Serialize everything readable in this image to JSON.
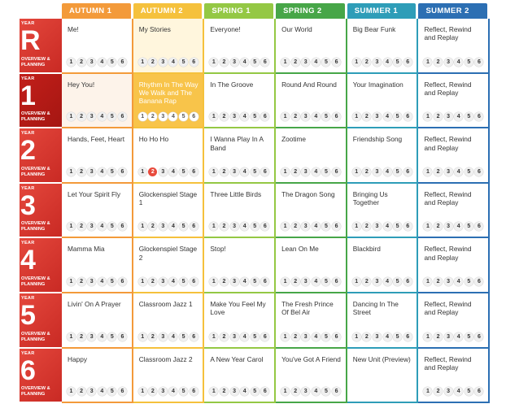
{
  "columns": [
    {
      "label": "AUTUMN 1",
      "color": "#f39a3a"
    },
    {
      "label": "AUTUMN 2",
      "color": "#f5c13c"
    },
    {
      "label": "SPRING 1",
      "color": "#94c844"
    },
    {
      "label": "SPRING 2",
      "color": "#47a648"
    },
    {
      "label": "SUMMER 1",
      "color": "#2e9db8"
    },
    {
      "label": "SUMMER 2",
      "color": "#2c6fb3"
    }
  ],
  "year_word": "YEAR",
  "overview_label": "OVERVIEW & PLANNING",
  "lesson_numbers": [
    "1",
    "2",
    "3",
    "4",
    "5",
    "6"
  ],
  "years": [
    {
      "num": "R",
      "units": [
        "Me!",
        "My Stories",
        "Everyone!",
        "Our World",
        "Big Bear Funk",
        "Reflect, Rewind and Replay"
      ]
    },
    {
      "num": "1",
      "units": [
        "Hey You!",
        "Rhythm In The Way We Walk and The Banana Rap",
        "In The Groove",
        "Round And Round",
        "Your Imagination",
        "Reflect, Rewind and Replay"
      ]
    },
    {
      "num": "2",
      "units": [
        "Hands, Feet, Heart",
        "Ho Ho Ho",
        "I Wanna Play In A Band",
        "Zootime",
        "Friendship Song",
        "Reflect, Rewind and Replay"
      ]
    },
    {
      "num": "3",
      "units": [
        "Let Your Spirit Fly",
        "Glockenspiel Stage 1",
        "Three Little Birds",
        "The Dragon Song",
        "Bringing Us Together",
        "Reflect, Rewind and Replay"
      ]
    },
    {
      "num": "4",
      "units": [
        "Mamma Mia",
        "Glockenspiel Stage 2",
        "Stop!",
        "Lean On Me",
        "Blackbird",
        "Reflect, Rewind and Replay"
      ]
    },
    {
      "num": "5",
      "units": [
        "Livin' On A Prayer",
        "Classroom Jazz 1",
        "Make You Feel My Love",
        "The Fresh Prince Of Bel Air",
        "Dancing In The Street",
        "Reflect, Rewind and Replay"
      ]
    },
    {
      "num": "6",
      "units": [
        "Happy",
        "Classroom Jazz 2",
        "A New Year Carol",
        "You've Got A Friend",
        "New Unit (Preview)",
        "Reflect, Rewind and Replay"
      ]
    }
  ],
  "highlights": [
    {
      "year": 0,
      "col": 1,
      "style": "light"
    },
    {
      "year": 1,
      "col": 0,
      "style": "soft"
    },
    {
      "year": 1,
      "col": 1,
      "style": "strong"
    }
  ],
  "completed_lessons": [
    {
      "year": 2,
      "col": 1,
      "lesson": 2
    }
  ],
  "hidden_lessons": [
    {
      "year": 6,
      "col": 4
    }
  ],
  "dark_year_index": 1
}
